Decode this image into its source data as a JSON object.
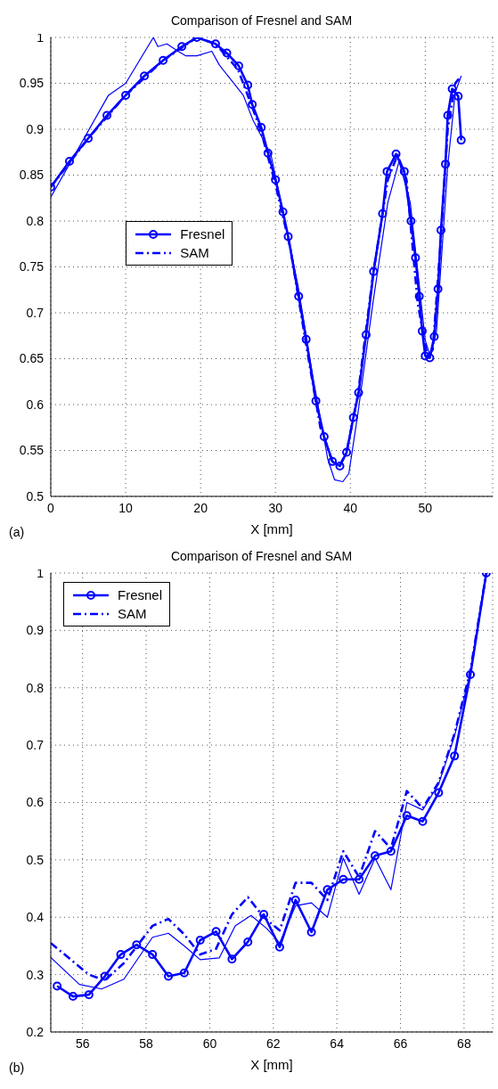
{
  "chart_data": [
    {
      "type": "line",
      "title": "Comparison of Fresnel and SAM",
      "xlabel": "X [mm]",
      "annotations": [
        "(a)"
      ],
      "xlim": [
        0,
        59
      ],
      "xticks": [
        0,
        10,
        20,
        30,
        40,
        50
      ],
      "ylim": [
        0.5,
        1
      ],
      "yticks": [
        0.5,
        0.55,
        0.6,
        0.65,
        0.7,
        0.75,
        0.8,
        0.85,
        0.9,
        0.95,
        1
      ],
      "grid": true,
      "legend": "center left",
      "series": [
        {
          "name": "Fresnel",
          "color": "#0000ff",
          "marker": "circle",
          "line_style": "solid",
          "x": [
            0,
            2.5,
            5,
            7.5,
            10,
            12.5,
            15,
            17.5,
            19.5,
            22,
            23.5,
            25.1,
            26.3,
            26.9,
            28.1,
            29,
            30,
            31,
            31.7,
            33.1,
            34.1,
            35.4,
            36.5,
            37.6,
            38.6,
            39.5,
            40.4,
            41.1,
            42.1,
            43.1,
            44.3,
            44.9,
            46.1,
            47.2,
            48.1,
            48.7,
            49.2,
            49.6,
            50,
            50.6,
            51.2,
            51.7,
            52.1,
            52.7,
            53,
            53.6,
            54.4,
            54.8
          ],
          "values": [
            0.837,
            0.865,
            0.89,
            0.915,
            0.937,
            0.958,
            0.975,
            0.99,
            1,
            0.993,
            0.983,
            0.969,
            0.948,
            0.927,
            0.902,
            0.874,
            0.845,
            0.81,
            0.783,
            0.718,
            0.671,
            0.604,
            0.565,
            0.538,
            0.533,
            0.548,
            0.586,
            0.613,
            0.676,
            0.745,
            0.808,
            0.854,
            0.873,
            0.854,
            0.8,
            0.76,
            0.718,
            0.68,
            0.653,
            0.651,
            0.674,
            0.726,
            0.79,
            0.862,
            0.915,
            0.944,
            0.936,
            0.888
          ]
        },
        {
          "name": "SAM",
          "color": "#0000ff",
          "marker": "none",
          "line_style": "dashed",
          "x": [
            0,
            5,
            10,
            15,
            19.5,
            22,
            25,
            28,
            30,
            32,
            34,
            36,
            37.6,
            38.6,
            39.5,
            41,
            43,
            45,
            46.3,
            47.5,
            49,
            50.3,
            51,
            52,
            53,
            54,
            54.8
          ],
          "values": [
            0.837,
            0.89,
            0.937,
            0.975,
            1,
            0.993,
            0.965,
            0.9,
            0.84,
            0.77,
            0.67,
            0.575,
            0.538,
            0.534,
            0.548,
            0.61,
            0.74,
            0.845,
            0.872,
            0.845,
            0.71,
            0.652,
            0.66,
            0.77,
            0.9,
            0.95,
            0.958
          ]
        },
        {
          "color": "#0000ff",
          "marker": "none",
          "line_style": "solid",
          "x": [
            0,
            7.7,
            10,
            13.7,
            14.3,
            15.5,
            17,
            18,
            19.5,
            21.5,
            22.5,
            25.7,
            27,
            29.4,
            31,
            33,
            35,
            37,
            37.9,
            39,
            39.8,
            41,
            43,
            45,
            46.5,
            48,
            50,
            50.7,
            51.5,
            53,
            54,
            54.8
          ],
          "values": [
            0.826,
            0.937,
            0.95,
            1,
            0.99,
            0.993,
            0.985,
            0.98,
            0.98,
            0.985,
            0.97,
            0.937,
            0.91,
            0.872,
            0.81,
            0.73,
            0.63,
            0.54,
            0.518,
            0.516,
            0.525,
            0.59,
            0.71,
            0.82,
            0.865,
            0.82,
            0.67,
            0.652,
            0.68,
            0.86,
            0.94,
            0.958
          ]
        }
      ]
    },
    {
      "type": "line",
      "title": "Comparison of Fresnel and SAM",
      "xlabel": "X [mm]",
      "annotations": [
        "(b)"
      ],
      "xlim": [
        55,
        68.9
      ],
      "xticks": [
        56,
        58,
        60,
        62,
        64,
        66,
        68
      ],
      "ylim": [
        0.2,
        1
      ],
      "yticks": [
        0.2,
        0.3,
        0.4,
        0.5,
        0.6,
        0.7,
        0.8,
        0.9,
        1
      ],
      "grid": true,
      "legend": "top left",
      "series": [
        {
          "name": "Fresnel",
          "color": "#0000ff",
          "marker": "circle",
          "line_style": "solid",
          "x": [
            55.2,
            55.7,
            56.2,
            56.7,
            57.2,
            57.7,
            58.2,
            58.7,
            59.2,
            59.7,
            60.2,
            60.7,
            61.2,
            61.7,
            62.2,
            62.7,
            63.2,
            63.7,
            64.2,
            64.7,
            65.2,
            65.7,
            66.2,
            66.7,
            67.2,
            67.7,
            68.2,
            68.7
          ],
          "values": [
            0.28,
            0.262,
            0.265,
            0.297,
            0.335,
            0.352,
            0.335,
            0.297,
            0.303,
            0.36,
            0.375,
            0.327,
            0.357,
            0.405,
            0.348,
            0.43,
            0.374,
            0.448,
            0.466,
            0.466,
            0.507,
            0.515,
            0.577,
            0.567,
            0.617,
            0.681,
            0.823,
            1
          ]
        },
        {
          "name": "SAM",
          "color": "#0000ff",
          "marker": "none",
          "line_style": "dashed",
          "x": [
            55,
            56.2,
            56.7,
            57.3,
            58.2,
            58.7,
            59.2,
            59.7,
            60.2,
            60.7,
            61.2,
            61.7,
            62.2,
            62.7,
            63.2,
            63.7,
            64.2,
            64.7,
            65.2,
            65.7,
            66.2,
            66.7,
            67.2,
            67.7,
            68.2,
            68.7
          ],
          "values": [
            0.355,
            0.3,
            0.29,
            0.32,
            0.385,
            0.397,
            0.37,
            0.335,
            0.345,
            0.405,
            0.435,
            0.4,
            0.377,
            0.46,
            0.46,
            0.43,
            0.515,
            0.47,
            0.55,
            0.52,
            0.62,
            0.59,
            0.635,
            0.72,
            0.83,
            1
          ]
        },
        {
          "color": "#0000ff",
          "marker": "none",
          "line_style": "solid",
          "x": [
            55,
            55.9,
            56.6,
            57.3,
            58.2,
            58.7,
            59.2,
            59.7,
            60.3,
            60.8,
            61.3,
            61.8,
            62.2,
            62.7,
            63.2,
            63.7,
            64.2,
            64.7,
            65.2,
            65.7,
            66.2,
            66.7,
            67.2,
            67.7,
            68.2,
            68.7
          ],
          "values": [
            0.33,
            0.283,
            0.275,
            0.292,
            0.365,
            0.372,
            0.35,
            0.326,
            0.329,
            0.385,
            0.403,
            0.38,
            0.355,
            0.42,
            0.425,
            0.4,
            0.503,
            0.44,
            0.503,
            0.448,
            0.6,
            0.587,
            0.632,
            0.716,
            0.826,
            1
          ]
        }
      ]
    }
  ]
}
